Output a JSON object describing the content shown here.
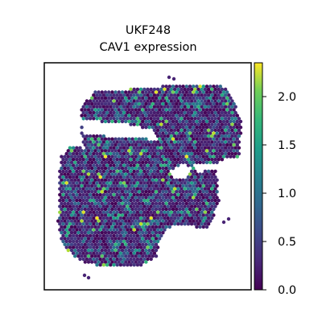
{
  "chart_data": {
    "type": "scatter",
    "title": "UKF248",
    "subtitle": "CAV1 expression",
    "xlabel": "",
    "ylabel": "",
    "colorbar": {
      "colormap": "viridis",
      "range": [
        0.0,
        2.35
      ],
      "tick_values": [
        0.0,
        0.5,
        1.0,
        1.5,
        2.0
      ],
      "tick_labels": [
        "0.0",
        "0.5",
        "1.0",
        "1.5",
        "2.0"
      ]
    },
    "values_summary": {
      "min": 0.0,
      "max": 2.35,
      "dominant_range": [
        0.0,
        0.6
      ],
      "shape": "spatial transcriptomics tissue section, two lobes with a central gap"
    },
    "colors": {
      "viridis_low": "#440154",
      "viridis_mid": "#21918c",
      "viridis_high": "#fde725"
    },
    "grid": false
  }
}
